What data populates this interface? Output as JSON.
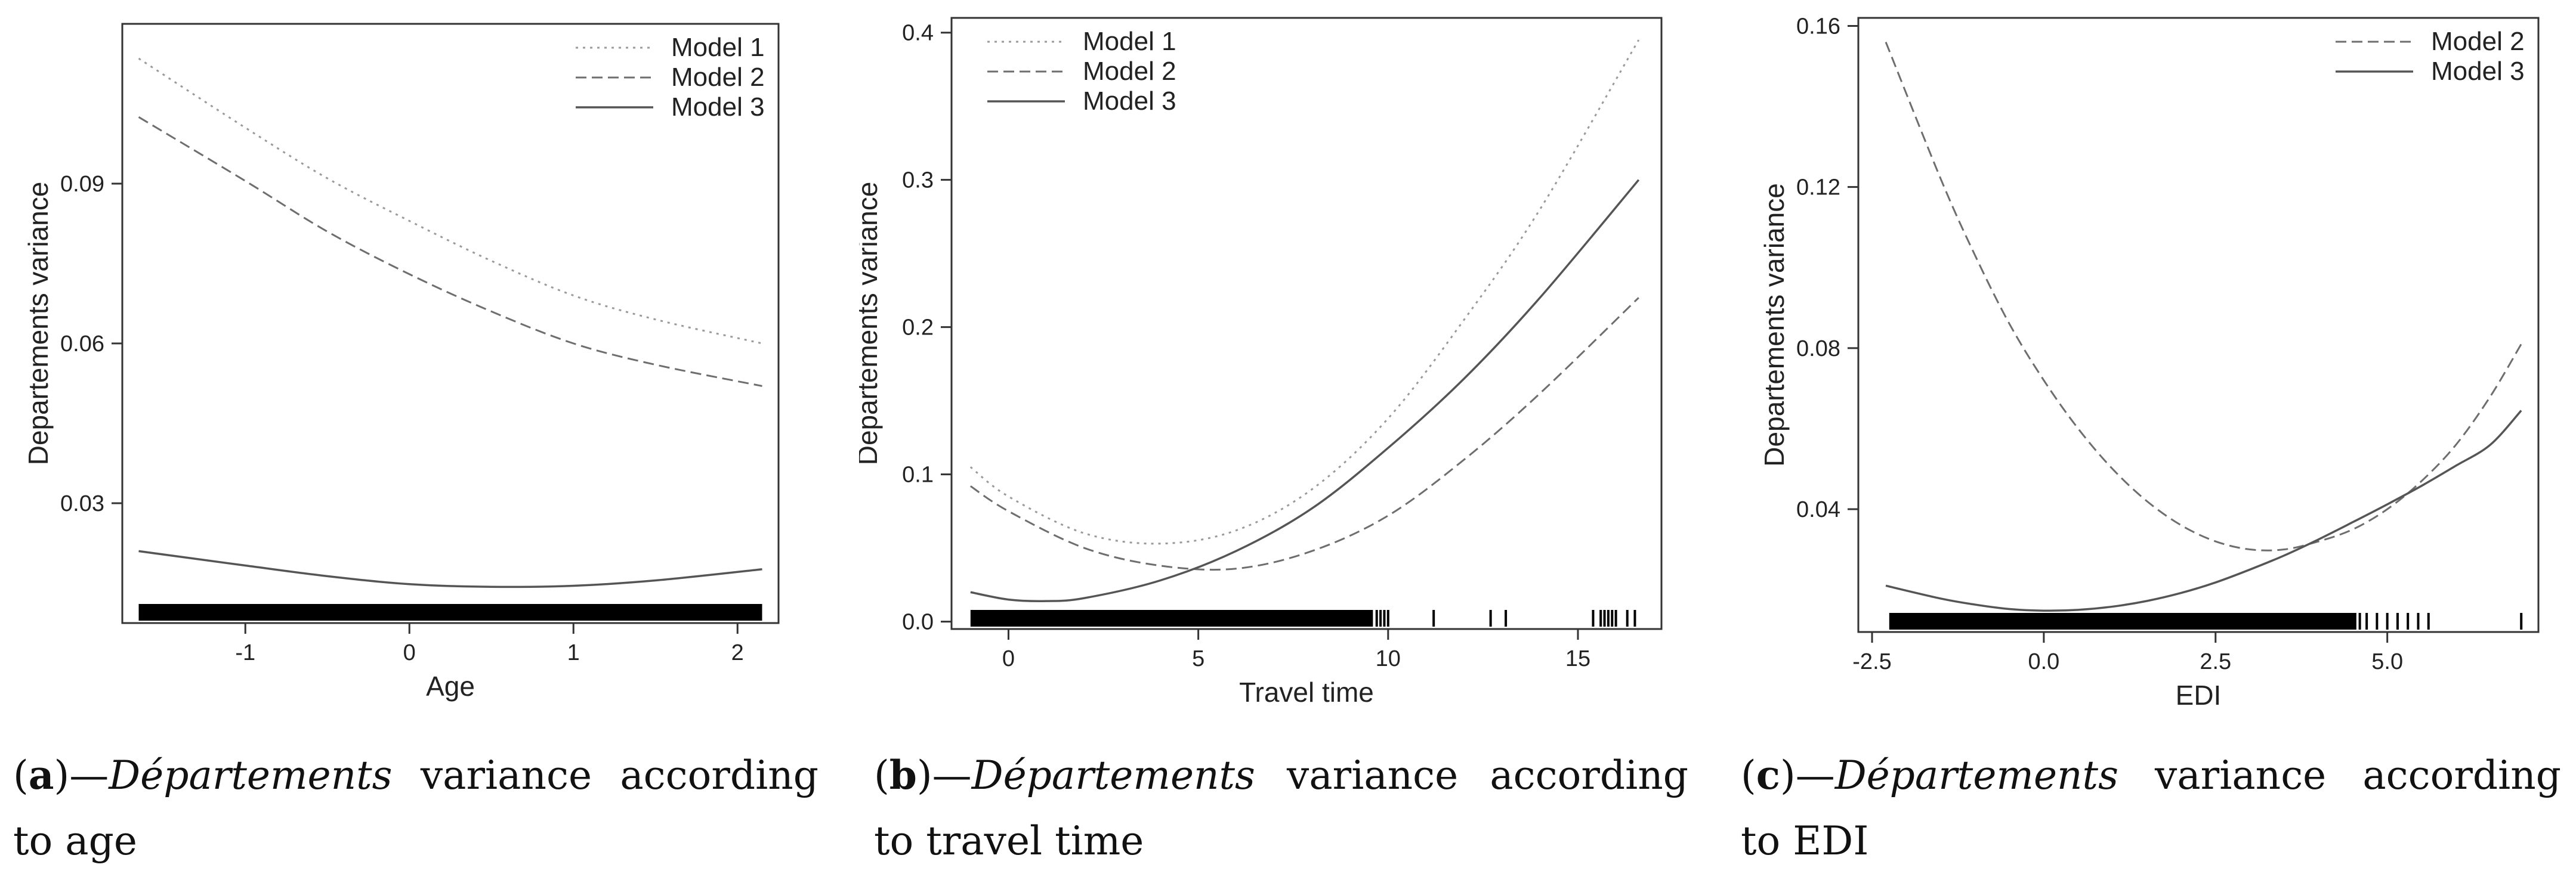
{
  "chart_data": [
    {
      "type": "line",
      "panel": "a",
      "xlabel": "Age",
      "ylabel": "Departements variance",
      "xlim": [
        -1.75,
        2.25
      ],
      "ylim": [
        0.0075,
        0.12
      ],
      "xticks": [
        -1,
        0,
        1,
        2
      ],
      "xtick_labels": [
        "-1",
        "0",
        "1",
        "2"
      ],
      "yticks": [
        0.03,
        0.06,
        0.09
      ],
      "ytick_labels": [
        "0.03",
        "0.06",
        "0.09"
      ],
      "legend": "top-right",
      "grid": false,
      "rug": {
        "segments": [
          [
            -1.65,
            2.15
          ]
        ],
        "ticks": []
      },
      "series": [
        {
          "name": "Model 1",
          "style": "dotted",
          "x": [
            -1.65,
            -1.0,
            -0.5,
            0.0,
            0.5,
            1.0,
            1.5,
            2.15
          ],
          "y": [
            0.1135,
            0.1005,
            0.091,
            0.083,
            0.0755,
            0.069,
            0.0645,
            0.06
          ]
        },
        {
          "name": "Model 2",
          "style": "dashed",
          "x": [
            -1.65,
            -1.0,
            -0.5,
            0.0,
            0.5,
            1.0,
            1.5,
            2.15
          ],
          "y": [
            0.1025,
            0.0905,
            0.081,
            0.073,
            0.066,
            0.06,
            0.056,
            0.052
          ]
        },
        {
          "name": "Model 3",
          "style": "solid",
          "x": [
            -1.65,
            -1.0,
            -0.5,
            0.0,
            0.5,
            1.0,
            1.5,
            2.15
          ],
          "y": [
            0.021,
            0.0183,
            0.0163,
            0.0148,
            0.0143,
            0.0145,
            0.0155,
            0.0176
          ]
        }
      ]
    },
    {
      "type": "line",
      "panel": "b",
      "xlabel": "Travel time",
      "ylabel": "Departements variance",
      "xlim": [
        -1.5,
        17.2
      ],
      "ylim": [
        -0.005,
        0.41
      ],
      "xticks": [
        0,
        5,
        10,
        15
      ],
      "xtick_labels": [
        "0",
        "5",
        "10",
        "15"
      ],
      "yticks": [
        0.0,
        0.1,
        0.2,
        0.3,
        0.4
      ],
      "ytick_labels": [
        "0.0",
        "0.1",
        "0.2",
        "0.3",
        "0.4"
      ],
      "legend": "top-left",
      "grid": false,
      "rug": {
        "segments": [
          [
            -1.0,
            9.6
          ]
        ],
        "ticks": [
          9.7,
          9.8,
          9.9,
          10.0,
          11.2,
          12.7,
          13.1,
          15.4,
          15.6,
          15.7,
          15.8,
          15.9,
          16.0,
          16.3,
          16.5
        ]
      },
      "series": [
        {
          "name": "Model 1",
          "style": "dotted",
          "x": [
            -1.0,
            0.0,
            2.0,
            4.0,
            6.0,
            8.0,
            10.0,
            12.0,
            14.0,
            16.6
          ],
          "y": [
            0.105,
            0.085,
            0.06,
            0.053,
            0.062,
            0.09,
            0.138,
            0.205,
            0.28,
            0.395
          ]
        },
        {
          "name": "Model 2",
          "style": "dashed",
          "x": [
            -1.0,
            0.0,
            2.0,
            4.0,
            6.0,
            8.0,
            10.0,
            12.0,
            14.0,
            16.6
          ],
          "y": [
            0.092,
            0.075,
            0.05,
            0.038,
            0.036,
            0.048,
            0.072,
            0.11,
            0.155,
            0.22
          ]
        },
        {
          "name": "Model 3",
          "style": "solid",
          "x": [
            -1.0,
            0.0,
            1.0,
            2.0,
            4.0,
            6.0,
            8.0,
            10.0,
            12.0,
            14.0,
            16.6
          ],
          "y": [
            0.02,
            0.015,
            0.014,
            0.016,
            0.028,
            0.048,
            0.077,
            0.118,
            0.165,
            0.22,
            0.3
          ]
        }
      ]
    },
    {
      "type": "line",
      "panel": "c",
      "xlabel": "EDI",
      "ylabel": "Departements variance",
      "xlim": [
        -2.7,
        7.2
      ],
      "ylim": [
        0.0095,
        0.162
      ],
      "xticks": [
        -2.5,
        0.0,
        2.5,
        5.0
      ],
      "xtick_labels": [
        "-2.5",
        "0.0",
        "2.5",
        "5.0"
      ],
      "yticks": [
        0.04,
        0.08,
        0.12,
        0.16
      ],
      "ytick_labels": [
        "0.04",
        "0.08",
        "0.12",
        "0.16"
      ],
      "legend": "top-right",
      "grid": false,
      "rug": {
        "segments": [
          [
            -2.25,
            4.55
          ]
        ],
        "ticks": [
          4.6,
          4.7,
          4.85,
          5.0,
          5.15,
          5.3,
          5.45,
          5.6,
          6.95
        ]
      },
      "series": [
        {
          "name": "Model 2",
          "style": "dashed",
          "x": [
            -2.3,
            -1.5,
            -1.0,
            -0.5,
            0.0,
            0.5,
            1.0,
            1.5,
            2.0,
            2.5,
            3.0,
            3.5,
            4.0,
            4.5,
            5.0,
            5.5,
            6.0,
            6.5,
            6.95
          ],
          "y": [
            0.156,
            0.122,
            0.103,
            0.086,
            0.072,
            0.06,
            0.05,
            0.042,
            0.036,
            0.032,
            0.03,
            0.03,
            0.032,
            0.035,
            0.04,
            0.047,
            0.056,
            0.068,
            0.081
          ]
        },
        {
          "name": "Model 3",
          "style": "solid",
          "x": [
            -2.3,
            -1.5,
            -1.0,
            -0.5,
            0.0,
            0.5,
            1.0,
            1.5,
            2.0,
            2.5,
            3.0,
            3.5,
            4.0,
            4.5,
            5.0,
            5.5,
            6.0,
            6.5,
            6.95
          ],
          "y": [
            0.021,
            0.0178,
            0.0163,
            0.0152,
            0.0148,
            0.015,
            0.0158,
            0.0172,
            0.0192,
            0.0218,
            0.025,
            0.0285,
            0.0325,
            0.0368,
            0.0412,
            0.0458,
            0.0508,
            0.056,
            0.0645
          ]
        }
      ]
    }
  ],
  "captions": [
    {
      "label": "a",
      "dash": "—",
      "italic": "Départements",
      "rest": " variance according to age"
    },
    {
      "label": "b",
      "dash": "—",
      "italic": "Départements",
      "rest": " variance according to travel time"
    },
    {
      "label": "c",
      "dash": "—",
      "italic": "Départements",
      "rest": " variance according to EDI"
    }
  ]
}
